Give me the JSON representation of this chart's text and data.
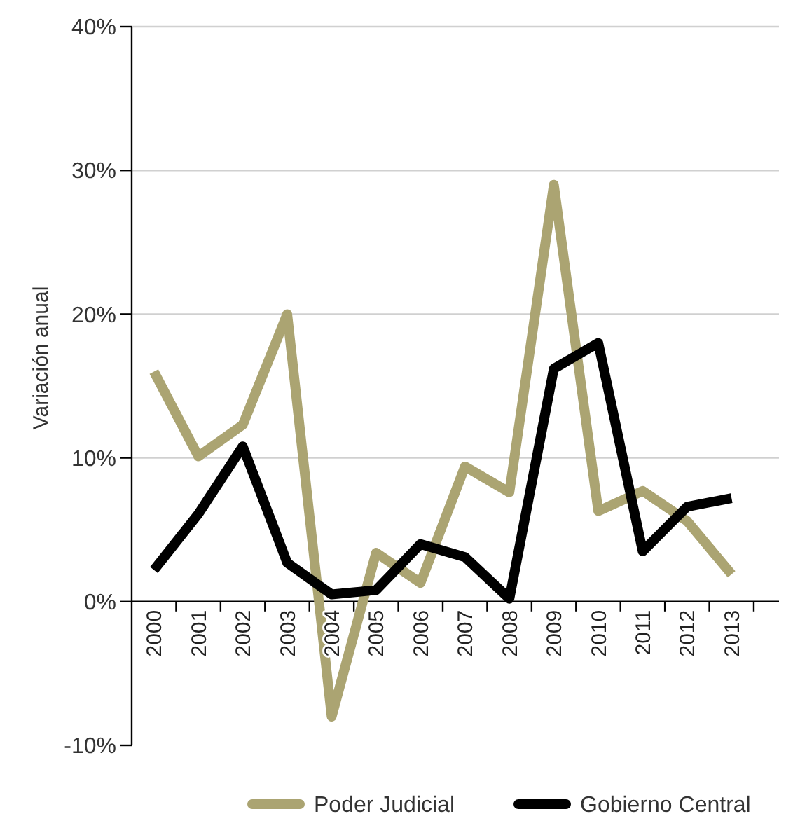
{
  "chart_data": {
    "type": "line",
    "ylabel": "Variación anual",
    "categories": [
      "2000",
      "2001",
      "2002",
      "2003",
      "2004",
      "2005",
      "2006",
      "2007",
      "2008",
      "2009",
      "2010",
      "2011",
      "2012",
      "2013"
    ],
    "series": [
      {
        "name": "Poder Judicial",
        "color": "#aba472",
        "values": [
          16.0,
          10.1,
          12.3,
          20.0,
          -8.0,
          3.4,
          1.3,
          9.4,
          7.6,
          29.0,
          6.3,
          7.7,
          5.6,
          1.9
        ]
      },
      {
        "name": "Gobierno Central",
        "color": "#000000",
        "values": [
          2.2,
          6.1,
          10.8,
          2.7,
          0.5,
          0.8,
          4.0,
          3.1,
          0.2,
          16.2,
          18.0,
          3.5,
          6.6,
          7.2
        ]
      }
    ],
    "ylim": [
      -10,
      40
    ],
    "yticks": [
      {
        "value": -10,
        "label": "-10%"
      },
      {
        "value": 0,
        "label": "0%"
      },
      {
        "value": 10,
        "label": "10%"
      },
      {
        "value": 20,
        "label": "20%"
      },
      {
        "value": 30,
        "label": "30%"
      },
      {
        "value": 40,
        "label": "40%"
      }
    ],
    "grid": "y",
    "legend": "bottom",
    "marker": "none",
    "line_style": "solid"
  }
}
